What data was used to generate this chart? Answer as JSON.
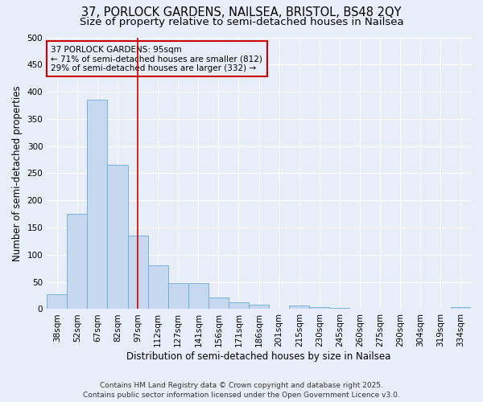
{
  "title_line1": "37, PORLOCK GARDENS, NAILSEA, BRISTOL, BS48 2QY",
  "title_line2": "Size of property relative to semi-detached houses in Nailsea",
  "categories": [
    "38sqm",
    "52sqm",
    "67sqm",
    "82sqm",
    "97sqm",
    "112sqm",
    "127sqm",
    "141sqm",
    "156sqm",
    "171sqm",
    "186sqm",
    "201sqm",
    "215sqm",
    "230sqm",
    "245sqm",
    "260sqm",
    "275sqm",
    "290sqm",
    "304sqm",
    "319sqm",
    "334sqm"
  ],
  "values": [
    27,
    175,
    385,
    265,
    135,
    80,
    48,
    48,
    22,
    12,
    8,
    0,
    7,
    4,
    2,
    0,
    0,
    0,
    0,
    0,
    4
  ],
  "bar_color": "#c5d8ef",
  "bar_edge_color": "#6aaad4",
  "highlight_bar_index": 4,
  "highlight_line_color": "#cc0000",
  "annotation_text": "37 PORLOCK GARDENS: 95sqm\n← 71% of semi-detached houses are smaller (812)\n29% of semi-detached houses are larger (332) →",
  "annotation_box_edge_color": "#cc0000",
  "xlabel": "Distribution of semi-detached houses by size in Nailsea",
  "ylabel": "Number of semi-detached properties",
  "ylim": [
    0,
    500
  ],
  "yticks": [
    0,
    50,
    100,
    150,
    200,
    250,
    300,
    350,
    400,
    450,
    500
  ],
  "footer_text": "Contains HM Land Registry data © Crown copyright and database right 2025.\nContains public sector information licensed under the Open Government Licence v3.0.",
  "background_color": "#e8eef8",
  "grid_color": "#ffffff",
  "title_fontsize": 10.5,
  "subtitle_fontsize": 9.5,
  "axis_label_fontsize": 8.5,
  "tick_fontsize": 7.5,
  "annotation_fontsize": 7.5,
  "footer_fontsize": 6.5
}
